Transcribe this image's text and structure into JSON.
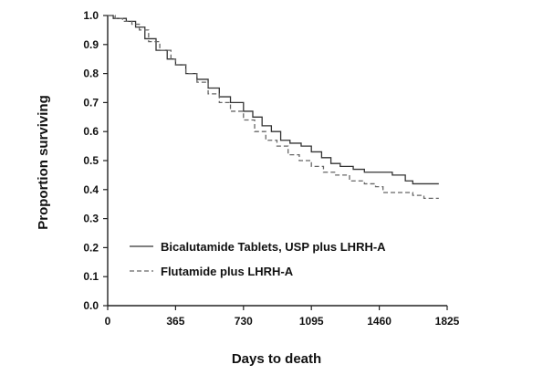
{
  "chart_data": {
    "type": "line",
    "xlabel": "Days to death",
    "ylabel": "Proportion surviving",
    "xlim": [
      0,
      1825
    ],
    "ylim": [
      0.0,
      1.0
    ],
    "x_ticks": [
      0,
      365,
      730,
      1095,
      1460,
      1825
    ],
    "y_ticks": [
      0.0,
      0.1,
      0.2,
      0.3,
      0.4,
      0.5,
      0.6,
      0.7,
      0.8,
      0.9,
      1.0
    ],
    "grid": false,
    "legend_position": "center-left",
    "series": [
      {
        "name": "Bicalutamide Tablets, USP plus LHRH-A",
        "line_style": "solid",
        "color": "#333333",
        "points": [
          [
            0,
            1.0
          ],
          [
            30,
            0.99
          ],
          [
            60,
            0.99
          ],
          [
            100,
            0.98
          ],
          [
            150,
            0.96
          ],
          [
            200,
            0.92
          ],
          [
            260,
            0.88
          ],
          [
            320,
            0.85
          ],
          [
            365,
            0.83
          ],
          [
            420,
            0.8
          ],
          [
            480,
            0.78
          ],
          [
            540,
            0.75
          ],
          [
            600,
            0.72
          ],
          [
            660,
            0.7
          ],
          [
            730,
            0.67
          ],
          [
            780,
            0.65
          ],
          [
            830,
            0.62
          ],
          [
            880,
            0.6
          ],
          [
            930,
            0.57
          ],
          [
            980,
            0.56
          ],
          [
            1040,
            0.55
          ],
          [
            1095,
            0.53
          ],
          [
            1150,
            0.51
          ],
          [
            1200,
            0.49
          ],
          [
            1250,
            0.48
          ],
          [
            1320,
            0.47
          ],
          [
            1380,
            0.46
          ],
          [
            1460,
            0.46
          ],
          [
            1530,
            0.45
          ],
          [
            1600,
            0.43
          ],
          [
            1640,
            0.42
          ],
          [
            1700,
            0.42
          ],
          [
            1780,
            0.42
          ]
        ]
      },
      {
        "name": "Flutamide plus LHRH-A",
        "line_style": "dashed",
        "color": "#666666",
        "points": [
          [
            0,
            1.0
          ],
          [
            40,
            0.99
          ],
          [
            80,
            0.98
          ],
          [
            130,
            0.97
          ],
          [
            170,
            0.95
          ],
          [
            220,
            0.91
          ],
          [
            280,
            0.88
          ],
          [
            340,
            0.85
          ],
          [
            365,
            0.83
          ],
          [
            420,
            0.8
          ],
          [
            480,
            0.77
          ],
          [
            540,
            0.73
          ],
          [
            600,
            0.7
          ],
          [
            660,
            0.67
          ],
          [
            730,
            0.64
          ],
          [
            790,
            0.6
          ],
          [
            850,
            0.57
          ],
          [
            910,
            0.55
          ],
          [
            970,
            0.52
          ],
          [
            1030,
            0.5
          ],
          [
            1095,
            0.48
          ],
          [
            1160,
            0.46
          ],
          [
            1220,
            0.45
          ],
          [
            1300,
            0.43
          ],
          [
            1380,
            0.42
          ],
          [
            1440,
            0.41
          ],
          [
            1480,
            0.39
          ],
          [
            1560,
            0.39
          ],
          [
            1640,
            0.38
          ],
          [
            1700,
            0.37
          ],
          [
            1780,
            0.37
          ]
        ]
      }
    ]
  }
}
